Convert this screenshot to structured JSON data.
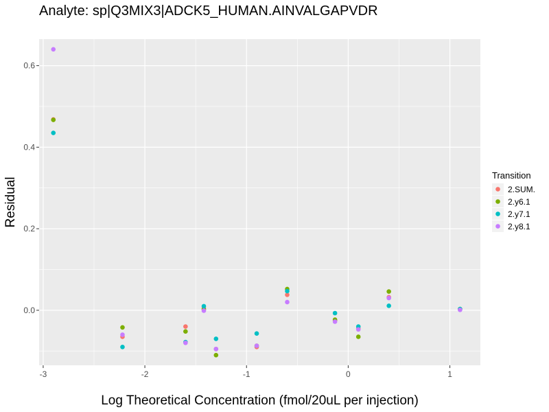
{
  "chart_data": {
    "type": "scatter",
    "title": "Analyte: sp|Q3MIX3|ADCK5_HUMAN.AINVALGAPVDR",
    "xlabel": "Log Theoretical Concentration (fmol/20uL per injection)",
    "ylabel": "Residual",
    "xlim": [
      -3.04,
      1.3
    ],
    "ylim": [
      -0.135,
      0.665
    ],
    "x_ticks": [
      -3,
      -2,
      -1,
      0,
      1
    ],
    "x_tick_labels": [
      "-3",
      "-2",
      "-1",
      "0",
      "1"
    ],
    "y_ticks": [
      0.0,
      0.2,
      0.4,
      0.6
    ],
    "y_tick_labels": [
      "0.0",
      "0.2",
      "0.4",
      "0.6"
    ],
    "grid": true,
    "legend": {
      "title": "Transition",
      "position": "right"
    },
    "series": [
      {
        "name": "2.SUM.",
        "color": "#F8766D",
        "points": [
          {
            "x": -2.9,
            "y": 0.468
          },
          {
            "x": -2.22,
            "y": -0.065
          },
          {
            "x": -1.6,
            "y": -0.04
          },
          {
            "x": -1.42,
            "y": 0.005
          },
          {
            "x": -1.3,
            "y": -0.095
          },
          {
            "x": -0.9,
            "y": -0.09
          },
          {
            "x": -0.6,
            "y": 0.038
          },
          {
            "x": -0.13,
            "y": -0.025
          },
          {
            "x": 0.1,
            "y": -0.045
          },
          {
            "x": 0.4,
            "y": 0.032
          },
          {
            "x": 1.1,
            "y": 0.002
          }
        ]
      },
      {
        "name": "2.y6.1",
        "color": "#7CAE00",
        "points": [
          {
            "x": -2.9,
            "y": 0.467
          },
          {
            "x": -2.22,
            "y": -0.042
          },
          {
            "x": -1.6,
            "y": -0.052
          },
          {
            "x": -1.42,
            "y": 0.002
          },
          {
            "x": -1.3,
            "y": -0.11
          },
          {
            "x": -0.9,
            "y": -0.087
          },
          {
            "x": -0.6,
            "y": 0.052
          },
          {
            "x": -0.13,
            "y": -0.023
          },
          {
            "x": 0.1,
            "y": -0.065
          },
          {
            "x": 0.4,
            "y": 0.046
          },
          {
            "x": 1.1,
            "y": 0.003
          }
        ]
      },
      {
        "name": "2.y7.1",
        "color": "#00BFC4",
        "points": [
          {
            "x": -2.9,
            "y": 0.435
          },
          {
            "x": -2.22,
            "y": -0.09
          },
          {
            "x": -1.6,
            "y": -0.078
          },
          {
            "x": -1.42,
            "y": 0.01
          },
          {
            "x": -1.3,
            "y": -0.07
          },
          {
            "x": -0.9,
            "y": -0.057
          },
          {
            "x": -0.6,
            "y": 0.047
          },
          {
            "x": -0.13,
            "y": -0.007
          },
          {
            "x": 0.1,
            "y": -0.04
          },
          {
            "x": 0.4,
            "y": 0.011
          },
          {
            "x": 1.1,
            "y": 0.003
          }
        ]
      },
      {
        "name": "2.y8.1",
        "color": "#C77CFF",
        "points": [
          {
            "x": -2.9,
            "y": 0.64
          },
          {
            "x": -2.22,
            "y": -0.06
          },
          {
            "x": -1.6,
            "y": -0.08
          },
          {
            "x": -1.42,
            "y": -0.001
          },
          {
            "x": -1.3,
            "y": -0.095
          },
          {
            "x": -0.9,
            "y": -0.087
          },
          {
            "x": -0.6,
            "y": 0.02
          },
          {
            "x": -0.13,
            "y": -0.028
          },
          {
            "x": 0.1,
            "y": -0.047
          },
          {
            "x": 0.4,
            "y": 0.03
          },
          {
            "x": 1.1,
            "y": 0.001
          }
        ]
      }
    ]
  },
  "colors": {
    "panel_background": "#EBEBEB",
    "grid_major": "#FFFFFF",
    "tick_text": "#4D4D4D",
    "legend_key_background": "#F2F2F2"
  }
}
